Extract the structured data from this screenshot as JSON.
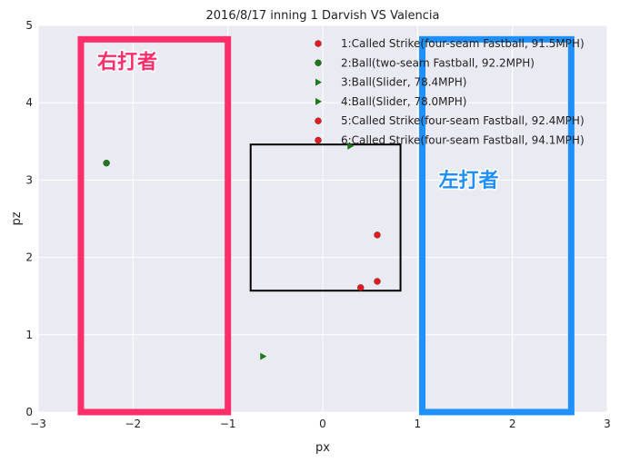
{
  "chart_data": {
    "type": "scatter",
    "title": "2016/8/17 inning 1 Darvish VS Valencia",
    "xlabel": "px",
    "ylabel": "pz",
    "xlim": [
      -3,
      3
    ],
    "ylim": [
      0,
      5
    ],
    "xticks": [
      -3,
      -2,
      -1,
      0,
      1,
      2,
      3
    ],
    "yticks": [
      0,
      1,
      2,
      3,
      4,
      5
    ],
    "grid": true,
    "legend_position": "top-right",
    "points": [
      {
        "label": "1:Called Strike(four-seam Fastball, 91.5MPH)",
        "x": 0.4,
        "y": 1.61,
        "marker": "circle",
        "color": "#e8191c"
      },
      {
        "label": "2:Ball(two-seam Fastball, 92.2MPH)",
        "x": -2.28,
        "y": 3.22,
        "marker": "circle",
        "color": "#1a7a1a"
      },
      {
        "label": "3:Ball(Slider, 78.4MPH)",
        "x": 0.29,
        "y": 3.44,
        "marker": "triangle",
        "color": "#1a7a1a"
      },
      {
        "label": "4:Ball(Slider, 78.0MPH)",
        "x": -0.63,
        "y": 0.72,
        "marker": "triangle",
        "color": "#1a7a1a"
      },
      {
        "label": "5:Called Strike(four-seam Fastball, 92.4MPH)",
        "x": 0.575,
        "y": 1.69,
        "marker": "circle",
        "color": "#e8191c"
      },
      {
        "label": "6:Called Strike(four-seam Fastball, 94.1MPH)",
        "x": 0.575,
        "y": 2.29,
        "marker": "circle",
        "color": "#e8191c"
      }
    ],
    "strike_zone": {
      "x": [
        -0.76,
        0.82
      ],
      "y": [
        1.57,
        3.46
      ],
      "color": "#000000"
    },
    "regions": [
      {
        "label": "右打者",
        "x": [
          -2.55,
          -1.0
        ],
        "y": [
          0,
          4.82
        ],
        "color": "#ff2d6a"
      },
      {
        "label": "左打者",
        "x": [
          1.05,
          2.62
        ],
        "y": [
          0,
          4.82
        ],
        "color": "#1e90ff"
      }
    ]
  }
}
